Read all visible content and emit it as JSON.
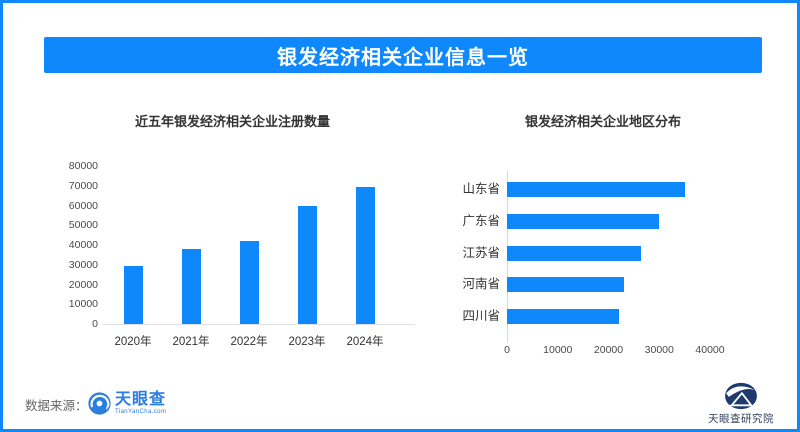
{
  "page": {
    "title": "银发经济相关企业信息一览",
    "accent_color": "#0e88fb"
  },
  "footer": {
    "source_label": "数据来源：",
    "tianyancha_logo_text": "天眼查",
    "tianyancha_logo_sub": "TianYanCha.com",
    "research_logo_text": "天眼查研究院"
  },
  "chart_data": [
    {
      "type": "bar",
      "orientation": "vertical",
      "title": "近五年银发经济相关企业注册数量",
      "categories": [
        "2020年",
        "2021年",
        "2022年",
        "2023年",
        "2024年"
      ],
      "values": [
        29500,
        38000,
        42000,
        59500,
        69500
      ],
      "xlabel": "",
      "ylabel": "",
      "ylim": [
        0,
        80000
      ],
      "ytick_step": 10000,
      "grid": false,
      "legend": "none",
      "bar_color": "#0e88fb"
    },
    {
      "type": "bar",
      "orientation": "horizontal",
      "title": "银发经济相关企业地区分布",
      "categories": [
        "山东省",
        "广东省",
        "江苏省",
        "河南省",
        "四川省"
      ],
      "values": [
        35000,
        30000,
        26500,
        23000,
        22000
      ],
      "xlabel": "",
      "ylabel": "",
      "xlim": [
        0,
        40000
      ],
      "xtick_step": 10000,
      "grid": false,
      "legend": "none",
      "bar_color": "#0e88fb"
    }
  ]
}
